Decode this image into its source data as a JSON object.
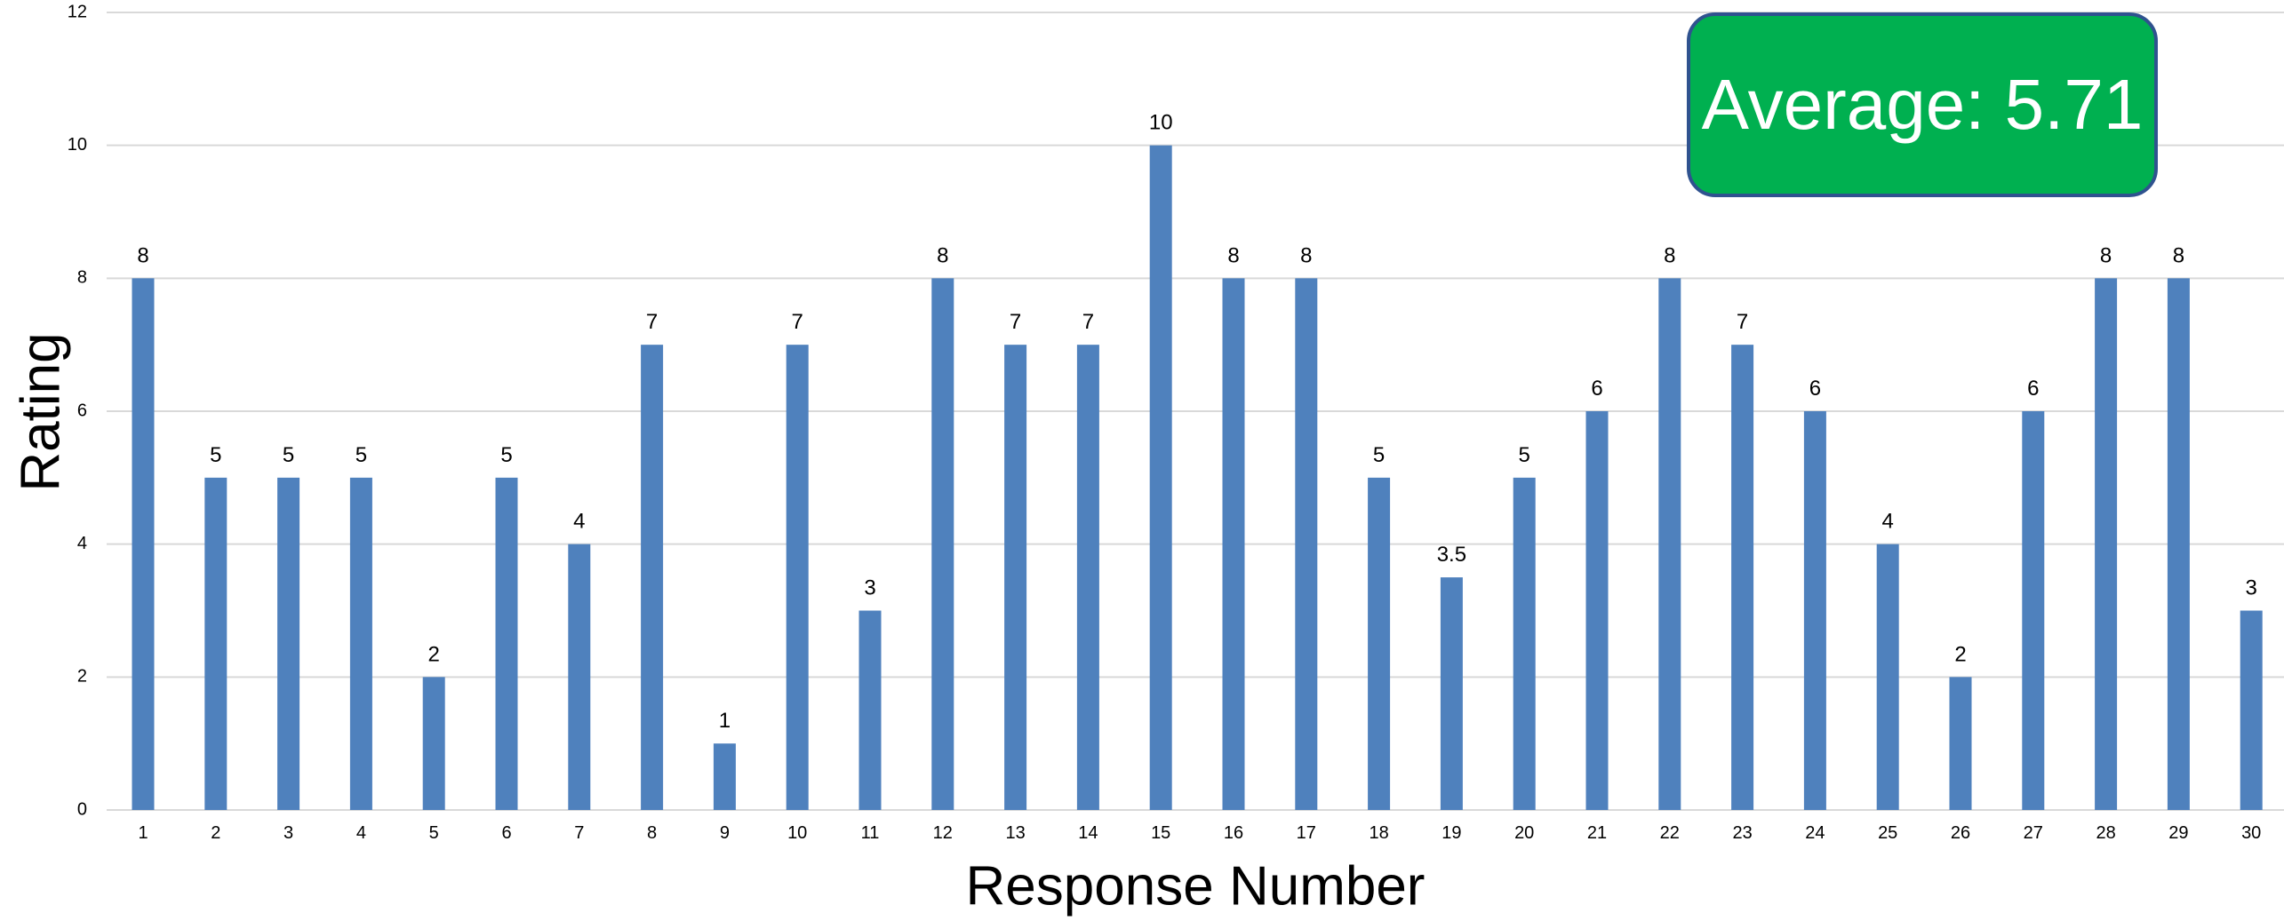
{
  "colors": {
    "bar": "#4f81bd",
    "gridline": "#d9d9d9",
    "average_box_fill": "#00b050",
    "average_box_border": "#2f528f",
    "average_text": "#ffffff"
  },
  "average_box": {
    "text": "Average: 5.71"
  },
  "chart_data": {
    "type": "bar",
    "title": "",
    "xlabel": "Response Number",
    "ylabel": "Rating",
    "ylim": [
      0,
      12
    ],
    "yticks": [
      "0",
      "2",
      "4",
      "6",
      "8",
      "10",
      "12"
    ],
    "grid": true,
    "categories": [
      "1",
      "2",
      "3",
      "4",
      "5",
      "6",
      "7",
      "8",
      "9",
      "10",
      "11",
      "12",
      "13",
      "14",
      "15",
      "16",
      "17",
      "18",
      "19",
      "20",
      "21",
      "22",
      "23",
      "24",
      "25",
      "26",
      "27",
      "28",
      "29",
      "30"
    ],
    "values": [
      8,
      5,
      5,
      5,
      2,
      5,
      4,
      7,
      1,
      7,
      3,
      8,
      7,
      7,
      10,
      8,
      8,
      5,
      3.5,
      5,
      6,
      8,
      7,
      6,
      4,
      2,
      6,
      8,
      8,
      3
    ],
    "data_labels": [
      "8",
      "5",
      "5",
      "5",
      "2",
      "5",
      "4",
      "7",
      "1",
      "7",
      "3",
      "8",
      "7",
      "7",
      "10",
      "8",
      "8",
      "5",
      "3.5",
      "5",
      "6",
      "8",
      "7",
      "6",
      "4",
      "2",
      "6",
      "8",
      "8",
      "3"
    ]
  }
}
